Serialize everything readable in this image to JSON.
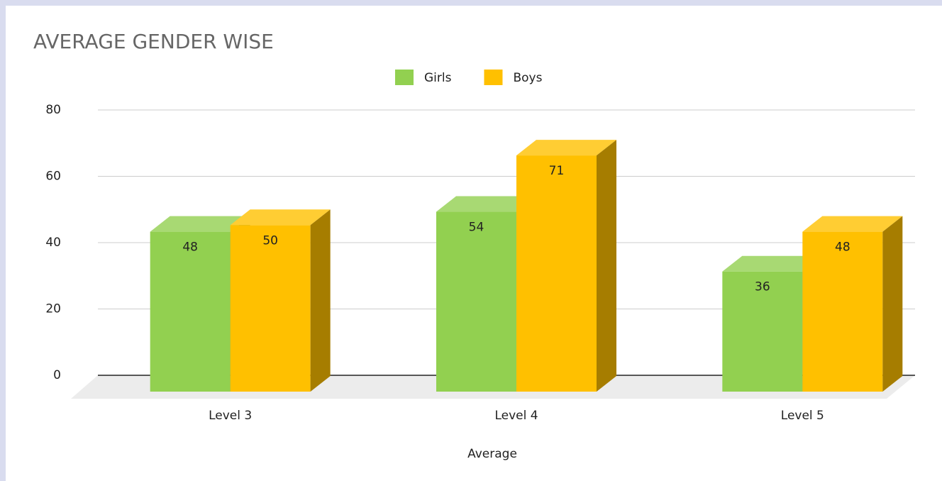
{
  "chart_data": {
    "type": "bar3d",
    "title": "AVERAGE GENDER WISE",
    "x_label": "Average",
    "categories": [
      "Level 3",
      "Level 4",
      "Level 5"
    ],
    "series": [
      {
        "name": "Girls",
        "color": "#92d050",
        "values": [
          48,
          54,
          36
        ]
      },
      {
        "name": "Boys",
        "color": "#ffc000",
        "values": [
          50,
          71,
          48
        ]
      }
    ],
    "ylim": [
      0,
      80
    ],
    "yticks": [
      0,
      20,
      40,
      60,
      80
    ],
    "grid": true,
    "legend": "top"
  }
}
